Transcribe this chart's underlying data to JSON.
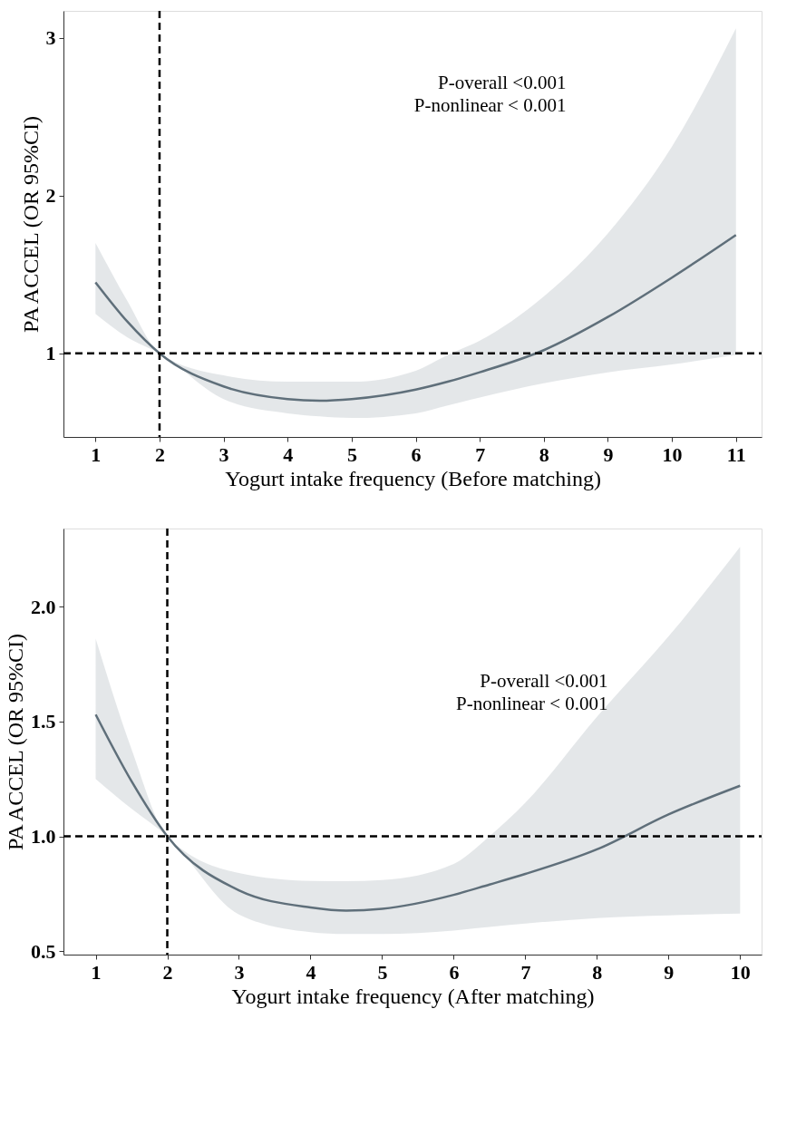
{
  "chart_data": [
    {
      "type": "line",
      "xlabel": "Yogurt intake frequency (Before matching)",
      "ylabel": "PA ACCEL (OR 95%CI)",
      "annotations": [
        "P-overall <0.001",
        "P-nonlinear < 0.001"
      ],
      "xlim": [
        0.5,
        11.4
      ],
      "xticks": [
        1,
        2,
        3,
        4,
        5,
        6,
        7,
        8,
        9,
        10,
        11
      ],
      "ylim": [
        0.47,
        3.17
      ],
      "yticks": [
        1,
        2,
        3
      ],
      "grid": false,
      "line_style": "solid",
      "marker": "none",
      "series": [
        {
          "color": "#5f6f7a",
          "x": [
            1,
            1.5,
            2,
            3,
            4,
            4.5,
            5,
            6,
            6.5,
            7,
            8,
            9,
            10,
            11
          ],
          "values": [
            1.45,
            1.2,
            1.0,
            0.79,
            0.71,
            0.7,
            0.71,
            0.77,
            0.82,
            0.88,
            1.02,
            1.23,
            1.48,
            1.75
          ],
          "lower": [
            1.25,
            1.1,
            1.0,
            0.71,
            0.62,
            0.6,
            0.59,
            0.62,
            0.67,
            0.72,
            0.81,
            0.88,
            0.93,
            0.99
          ],
          "upper": [
            1.7,
            1.33,
            1.0,
            0.86,
            0.82,
            0.82,
            0.82,
            0.89,
            0.99,
            1.08,
            1.36,
            1.76,
            2.31,
            3.06
          ]
        }
      ],
      "ref_lines": [
        {
          "axis": "x",
          "value": 2,
          "color": "#000000",
          "line_style": "dashed"
        },
        {
          "axis": "y",
          "value": 1,
          "color": "#000000",
          "line_style": "dashed"
        }
      ]
    },
    {
      "type": "line",
      "xlabel": "Yogurt intake frequency (After matching)",
      "ylabel": "PA ACCEL (OR 95%CI)",
      "annotations": [
        "P-overall <0.001",
        "P-nonlinear < 0.001"
      ],
      "xlim": [
        0.55,
        10.3
      ],
      "xticks": [
        1,
        2,
        3,
        4,
        5,
        6,
        7,
        8,
        9,
        10
      ],
      "ylim": [
        0.485,
        2.34
      ],
      "yticks": [
        {
          "value": 0.5,
          "label": "0.5"
        },
        {
          "value": 1,
          "label": "1.0"
        },
        {
          "value": 1.5,
          "label": "1.5"
        },
        {
          "value": 2,
          "label": "2.0"
        }
      ],
      "grid": false,
      "line_style": "solid",
      "marker": "none",
      "series": [
        {
          "color": "#5f6f7a",
          "x": [
            1,
            1.5,
            2,
            3,
            4,
            4.5,
            5,
            6,
            6.5,
            7,
            8,
            9,
            10
          ],
          "values": [
            1.53,
            1.24,
            1.0,
            0.765,
            0.69,
            0.676,
            0.684,
            0.745,
            0.79,
            0.836,
            0.943,
            1.095,
            1.22
          ],
          "lower": [
            1.25,
            1.12,
            1.0,
            0.66,
            0.583,
            0.575,
            0.575,
            0.59,
            0.605,
            0.62,
            0.644,
            0.656,
            0.664
          ],
          "upper": [
            1.86,
            1.38,
            1.0,
            0.84,
            0.806,
            0.805,
            0.81,
            0.88,
            1.0,
            1.146,
            1.52,
            1.87,
            2.26
          ]
        }
      ],
      "ref_lines": [
        {
          "axis": "x",
          "value": 2,
          "color": "#000000",
          "line_style": "dashed"
        },
        {
          "axis": "y",
          "value": 1,
          "color": "#000000",
          "line_style": "dashed"
        }
      ]
    }
  ]
}
